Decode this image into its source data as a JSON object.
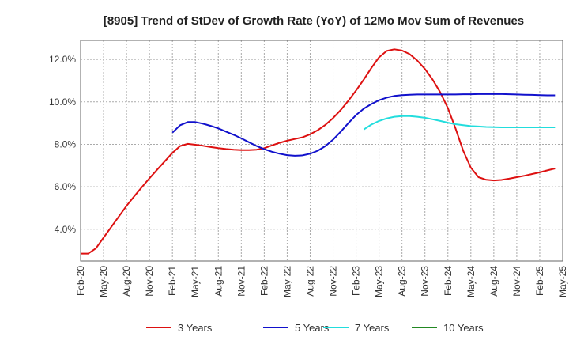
{
  "chart_data": {
    "type": "line",
    "title": "[8905]  Trend of StDev of Growth Rate (YoY) of 12Mo Mov Sum of Revenues",
    "xlabel": "",
    "ylabel": "",
    "ylim": [
      2.5,
      12.9
    ],
    "yticks": [
      4.0,
      6.0,
      8.0,
      10.0,
      12.0
    ],
    "ytick_labels": [
      "4.0%",
      "6.0%",
      "8.0%",
      "10.0%",
      "12.0%"
    ],
    "x_start": "Feb-20",
    "x_end": "May-25",
    "xtick_labels": [
      "Feb-20",
      "May-20",
      "Aug-20",
      "Nov-20",
      "Feb-21",
      "May-21",
      "Aug-21",
      "Nov-21",
      "Feb-22",
      "May-22",
      "Aug-22",
      "Nov-22",
      "Feb-23",
      "May-23",
      "Aug-23",
      "Nov-23",
      "Feb-24",
      "May-24",
      "Aug-24",
      "Nov-24",
      "Feb-25",
      "May-25"
    ],
    "grid": true,
    "legend_position": "bottom",
    "series": [
      {
        "name": "3 Years",
        "color": "#dd1111",
        "start_month_index": 0,
        "values": [
          2.85,
          2.85,
          3.1,
          3.6,
          4.1,
          4.6,
          5.1,
          5.55,
          5.98,
          6.4,
          6.8,
          7.2,
          7.6,
          7.92,
          8.02,
          7.98,
          7.93,
          7.87,
          7.82,
          7.78,
          7.75,
          7.73,
          7.73,
          7.75,
          7.82,
          7.95,
          8.07,
          8.17,
          8.25,
          8.33,
          8.47,
          8.67,
          8.92,
          9.24,
          9.62,
          10.06,
          10.54,
          11.05,
          11.6,
          12.1,
          12.4,
          12.48,
          12.42,
          12.25,
          11.95,
          11.55,
          11.05,
          10.45,
          9.7,
          8.75,
          7.7,
          6.9,
          6.45,
          6.33,
          6.3,
          6.32,
          6.38,
          6.45,
          6.52,
          6.6,
          6.68,
          6.77,
          6.86
        ]
      },
      {
        "name": "5 Years",
        "color": "#1111cc",
        "start_month_index": 12,
        "values": [
          8.55,
          8.9,
          9.05,
          9.05,
          8.97,
          8.87,
          8.75,
          8.6,
          8.45,
          8.28,
          8.1,
          7.92,
          7.77,
          7.65,
          7.56,
          7.49,
          7.46,
          7.48,
          7.56,
          7.7,
          7.92,
          8.22,
          8.6,
          9.0,
          9.38,
          9.68,
          9.9,
          10.08,
          10.2,
          10.28,
          10.32,
          10.34,
          10.35,
          10.35,
          10.35,
          10.35,
          10.35,
          10.35,
          10.36,
          10.36,
          10.37,
          10.37,
          10.37,
          10.37,
          10.36,
          10.35,
          10.34,
          10.33,
          10.32,
          10.31,
          10.31
        ]
      },
      {
        "name": "7 Years",
        "color": "#22dddd",
        "start_month_index": 37,
        "values": [
          8.7,
          8.93,
          9.1,
          9.22,
          9.3,
          9.33,
          9.33,
          9.3,
          9.25,
          9.18,
          9.1,
          9.02,
          8.95,
          8.9,
          8.86,
          8.84,
          8.82,
          8.81,
          8.8,
          8.8,
          8.8,
          8.8,
          8.8,
          8.8,
          8.8,
          8.8
        ]
      },
      {
        "name": "10 Years",
        "color": "#228822",
        "start_month_index": 0,
        "values": []
      }
    ]
  }
}
